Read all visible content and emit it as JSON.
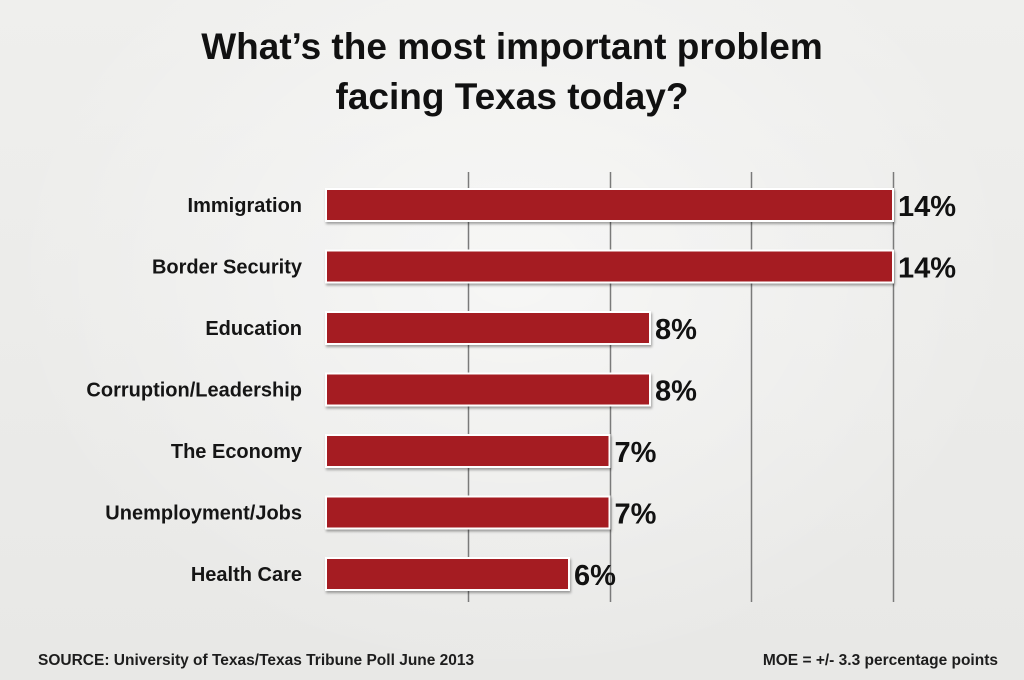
{
  "chart_data": {
    "type": "bar",
    "orientation": "horizontal",
    "title_lines": [
      "What’s the most important problem",
      "facing Texas today?"
    ],
    "categories": [
      "Immigration",
      "Border Security",
      "Education",
      "Corruption/Leadership",
      "The Economy",
      "Unemployment/Jobs",
      "Health Care"
    ],
    "values": [
      14,
      14,
      8,
      8,
      7,
      7,
      6
    ],
    "value_labels": [
      "14%",
      "14%",
      "8%",
      "8%",
      "7%",
      "7%",
      "6%"
    ],
    "xlim": [
      0,
      14
    ],
    "gridlines": [
      3.5,
      7,
      10.5,
      14
    ],
    "grid": true,
    "bar_color": "#a51c20",
    "grid_color": "#7a7a7a"
  },
  "footer": {
    "source": "SOURCE: University of Texas/Texas Tribune Poll June 2013",
    "moe": "MOE = +/- 3.3 percentage points"
  }
}
